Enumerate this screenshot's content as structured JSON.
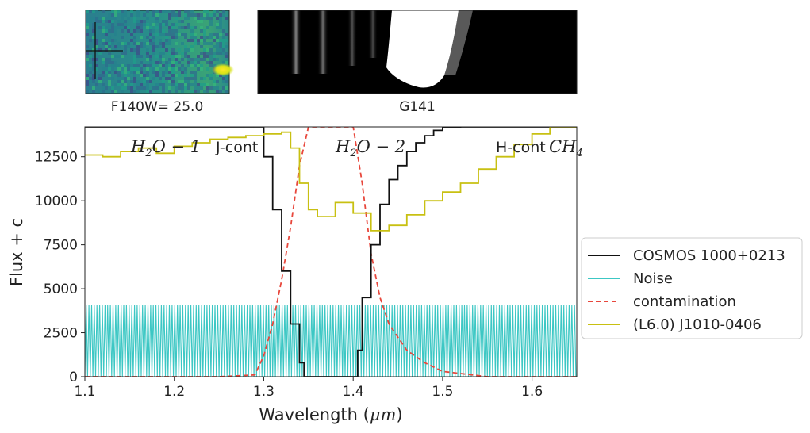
{
  "chart_data": {
    "type": "line",
    "xlabel": "Wavelength ($\\mu m$)",
    "ylabel": "Flux + c",
    "xlim": [
      1.1,
      1.65
    ],
    "ylim": [
      0,
      14200
    ],
    "xticks": [
      "1.1",
      "1.2",
      "1.3",
      "1.4",
      "1.5",
      "1.6"
    ],
    "yticks": [
      "0",
      "2500",
      "5000",
      "7500",
      "10000",
      "12500"
    ],
    "grid": false,
    "legend_position": "outside-right",
    "thumbnail_caption": "F140W= 25.0",
    "spectrum2d_caption": "G141",
    "band_labels": [
      {
        "text": "$H_2O-1$",
        "math": true
      },
      {
        "text": "J-cont",
        "math": false
      },
      {
        "text": "$H_2O-2$",
        "math": true
      },
      {
        "text": "H-cont",
        "math": false
      },
      {
        "text": "$CH_4$",
        "math": true
      }
    ],
    "series": [
      {
        "name": "COSMOS 1000+0213",
        "color": "#111111",
        "style": "steps-solid",
        "x": [
          1.1,
          1.2,
          1.28,
          1.3,
          1.31,
          1.32,
          1.33,
          1.34,
          1.345,
          1.35,
          1.36,
          1.37,
          1.38,
          1.39,
          1.4,
          1.405,
          1.41,
          1.42,
          1.43,
          1.44,
          1.45,
          1.46,
          1.47,
          1.48,
          1.49,
          1.5,
          1.52,
          1.55,
          1.65
        ],
        "y": [
          14200,
          14200,
          14200,
          12500,
          9500,
          6000,
          3000,
          800,
          0,
          0,
          0,
          0,
          0,
          0,
          0,
          1500,
          4500,
          7500,
          9800,
          11200,
          12000,
          12800,
          13300,
          13700,
          14000,
          14150,
          14200,
          14200,
          14200
        ]
      },
      {
        "name": "Noise",
        "color": "#3cc7c4",
        "style": "oscillating",
        "x": [
          1.1,
          1.65
        ],
        "y": [
          0,
          4100
        ]
      },
      {
        "name": "contamination",
        "color": "#e8473c",
        "style": "dashed",
        "x": [
          1.1,
          1.25,
          1.29,
          1.3,
          1.31,
          1.32,
          1.33,
          1.34,
          1.35,
          1.36,
          1.38,
          1.4,
          1.41,
          1.42,
          1.43,
          1.44,
          1.46,
          1.48,
          1.5,
          1.55,
          1.65
        ],
        "y": [
          0,
          0,
          100,
          1200,
          3000,
          5500,
          8500,
          12000,
          14200,
          14200,
          14200,
          14200,
          11000,
          7000,
          4500,
          3000,
          1500,
          800,
          300,
          0,
          0
        ]
      },
      {
        "name": "(L6.0) J1010-0406",
        "color": "#c8c012",
        "style": "steps-solid",
        "x": [
          1.1,
          1.12,
          1.14,
          1.16,
          1.18,
          1.2,
          1.22,
          1.24,
          1.26,
          1.28,
          1.3,
          1.32,
          1.33,
          1.34,
          1.35,
          1.36,
          1.38,
          1.4,
          1.42,
          1.44,
          1.46,
          1.48,
          1.5,
          1.52,
          1.54,
          1.56,
          1.58,
          1.6,
          1.62,
          1.65
        ],
        "y": [
          12600,
          12500,
          12800,
          13000,
          12700,
          13100,
          13300,
          13500,
          13600,
          13700,
          13800,
          13900,
          13000,
          11000,
          9500,
          9100,
          9900,
          9300,
          8300,
          8600,
          9200,
          10000,
          10500,
          11000,
          11800,
          12500,
          13200,
          13800,
          14200,
          14200
        ]
      }
    ]
  }
}
